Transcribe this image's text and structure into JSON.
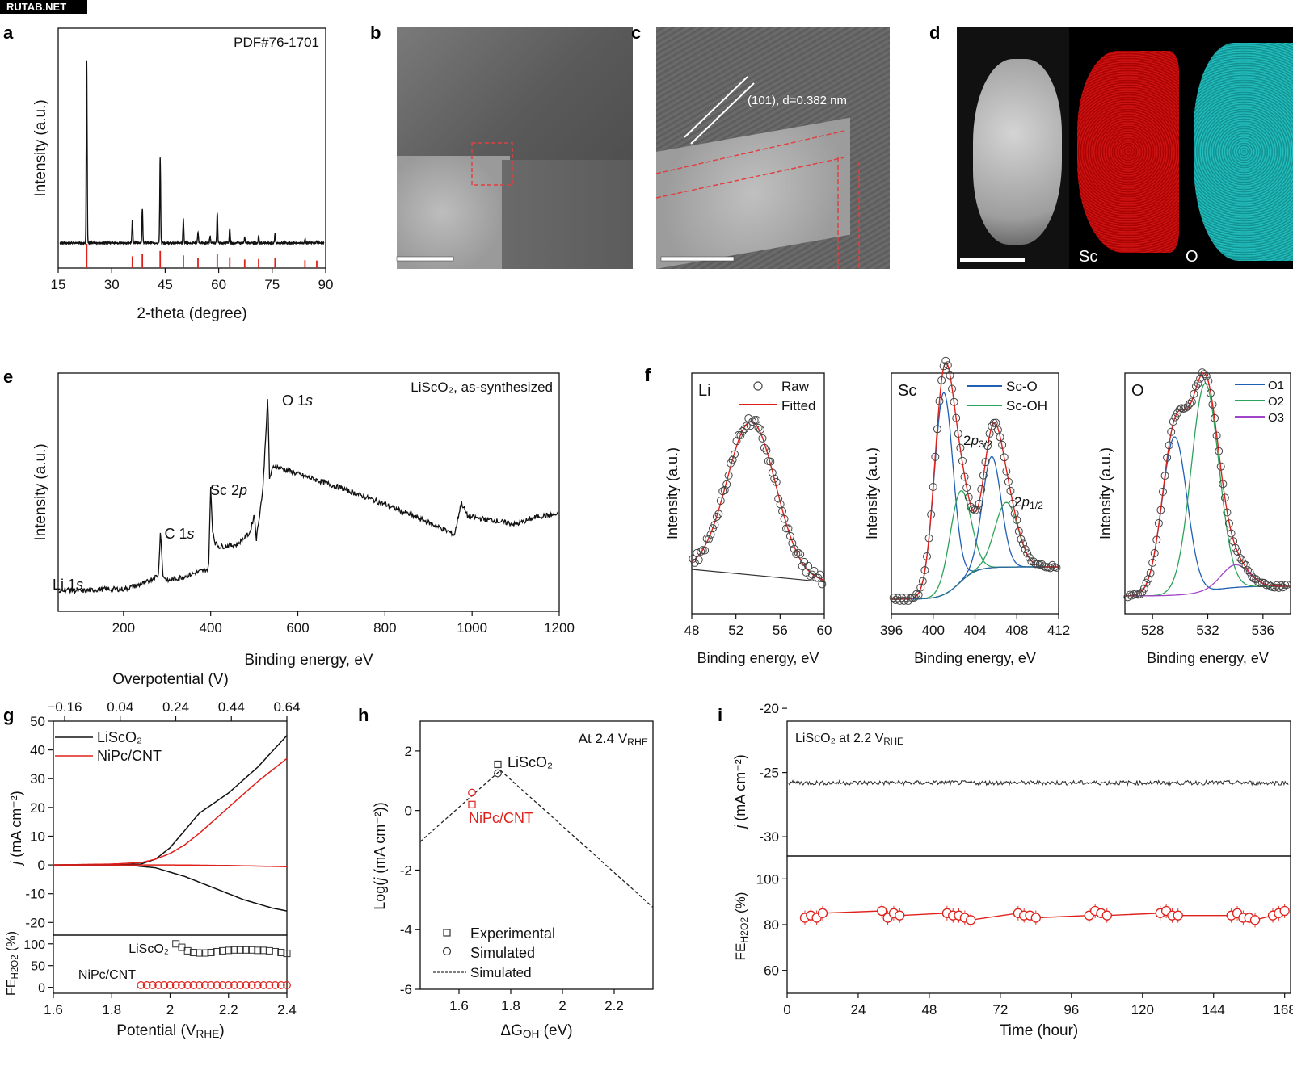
{
  "watermark": "RUTAB.NET",
  "panels": {
    "a": "a",
    "b": "b",
    "c": "c",
    "d": "d",
    "e": "e",
    "f": "f",
    "g": "g",
    "h": "h",
    "i": "i"
  },
  "micrographs": {
    "c_annotation": "(101), d=0.382 nm",
    "d_labels": [
      "Sc",
      "O"
    ]
  },
  "colors": {
    "black": "#111111",
    "red": "#e0201b",
    "blue": "#1f5fb4",
    "green": "#2ca35a",
    "purple": "#a045c8"
  },
  "chart_data": [
    {
      "id": "a",
      "type": "line",
      "title": "PDF#76-1701",
      "xlabel": "2-theta (degree)",
      "ylabel": "Intensity (a.u.)",
      "xlim": [
        15,
        90
      ],
      "xticks": [
        15,
        30,
        45,
        60,
        75,
        90
      ],
      "peaks": [
        [
          23.0,
          1.0
        ],
        [
          35.8,
          0.13
        ],
        [
          38.6,
          0.19
        ],
        [
          43.6,
          0.47
        ],
        [
          50.1,
          0.13
        ],
        [
          54.2,
          0.06
        ],
        [
          57.6,
          0.04
        ],
        [
          59.6,
          0.16
        ],
        [
          63.1,
          0.08
        ],
        [
          67.3,
          0.03
        ],
        [
          71.2,
          0.04
        ],
        [
          75.8,
          0.05
        ],
        [
          84.2,
          0.02
        ],
        [
          87.5,
          0.01
        ]
      ],
      "reference_sticks": [
        [
          23.0,
          1.0
        ],
        [
          35.8,
          0.3
        ],
        [
          38.6,
          0.45
        ],
        [
          43.6,
          0.6
        ],
        [
          50.1,
          0.35
        ],
        [
          54.2,
          0.2
        ],
        [
          59.6,
          0.45
        ],
        [
          63.1,
          0.25
        ],
        [
          67.3,
          0.12
        ],
        [
          71.2,
          0.15
        ],
        [
          75.8,
          0.18
        ],
        [
          84.2,
          0.08
        ],
        [
          87.5,
          0.06
        ]
      ]
    },
    {
      "id": "e",
      "type": "line",
      "title": "LiScO₂, as-synthesized",
      "xlabel": "Binding energy, eV",
      "ylabel": "Intensity (a.u.)",
      "xlim": [
        50,
        1200
      ],
      "xticks": [
        200,
        400,
        600,
        800,
        1000,
        1200
      ],
      "series": [
        {
          "name": "survey",
          "x": [
            50,
            60,
            100,
            150,
            200,
            250,
            280,
            285,
            290,
            300,
            350,
            395,
            400,
            404,
            410,
            420,
            460,
            490,
            500,
            505,
            520,
            531,
            535,
            545,
            600,
            700,
            800,
            900,
            960,
            975,
            990,
            1050,
            1100,
            1150,
            1200
          ],
          "y": [
            0.02,
            0.05,
            0.04,
            0.05,
            0.05,
            0.08,
            0.12,
            0.35,
            0.12,
            0.09,
            0.12,
            0.15,
            0.55,
            0.35,
            0.28,
            0.26,
            0.27,
            0.33,
            0.42,
            0.3,
            0.55,
            1.0,
            0.6,
            0.66,
            0.62,
            0.55,
            0.47,
            0.38,
            0.32,
            0.48,
            0.41,
            0.39,
            0.37,
            0.41,
            0.42
          ]
        }
      ],
      "annotations": [
        {
          "text": "Li 1",
          "italic": "s",
          "x": 55
        },
        {
          "text": "C 1",
          "italic": "s",
          "x": 285
        },
        {
          "text": "Sc 2",
          "italic": "p",
          "x": 400
        },
        {
          "text": "O 1",
          "italic": "s",
          "x": 531
        }
      ]
    },
    {
      "id": "f_li",
      "type": "scatter",
      "element": "Li",
      "xlabel": "Binding energy, eV",
      "ylabel": "Intensity (a.u.)",
      "xlim": [
        48,
        60
      ],
      "xticks": [
        48,
        52,
        56,
        60
      ],
      "legend": [
        "Raw",
        "Fitted"
      ],
      "peak": {
        "center": 53.4,
        "width": 2.2
      }
    },
    {
      "id": "f_sc",
      "type": "scatter",
      "element": "Sc",
      "xlabel": "Binding energy, eV",
      "ylabel": "Intensity (a.u.)",
      "xlim": [
        396,
        412
      ],
      "xticks": [
        396,
        400,
        404,
        408,
        412
      ],
      "legend": [
        "Sc-O",
        "Sc-OH"
      ],
      "annotations": [
        {
          "text": "2",
          "italic": "p",
          "sub": "3/2"
        },
        {
          "text": "2",
          "italic": "p",
          "sub": "1/2"
        }
      ],
      "peaks": [
        {
          "center": 401.0,
          "height": 1.0,
          "width": 0.9,
          "series": "Sc-O"
        },
        {
          "center": 402.6,
          "height": 0.45,
          "width": 1.0,
          "series": "Sc-OH"
        },
        {
          "center": 405.6,
          "height": 0.55,
          "width": 0.9,
          "series": "Sc-O"
        },
        {
          "center": 407.0,
          "height": 0.32,
          "width": 1.1,
          "series": "Sc-OH"
        }
      ]
    },
    {
      "id": "f_o",
      "type": "scatter",
      "element": "O",
      "xlabel": "Binding energy, eV",
      "ylabel": "Intensity (a.u.)",
      "xlim": [
        526,
        538
      ],
      "xticks": [
        528,
        532,
        536
      ],
      "legend": [
        "O1",
        "O2",
        "O3"
      ],
      "peaks": [
        {
          "center": 529.6,
          "height": 0.7,
          "width": 0.9,
          "series": "O1"
        },
        {
          "center": 531.8,
          "height": 0.92,
          "width": 1.0,
          "series": "O2"
        },
        {
          "center": 534.0,
          "height": 0.1,
          "width": 1.0,
          "series": "O3"
        }
      ]
    },
    {
      "id": "g",
      "type": "line",
      "xlabel_main": "Potential (V",
      "xlabel_sub": "RHE",
      "xlabel_close": ")",
      "top_axis_label": "Overpotential (V)",
      "top_xticks": [
        "−0.16",
        "0.04",
        "0.24",
        "0.44",
        "0.64"
      ],
      "ylabel": "j (mA cm⁻²)",
      "xlim": [
        1.6,
        2.4
      ],
      "ylim": [
        -23,
        50
      ],
      "xticks": [
        1.6,
        1.8,
        2.0,
        2.2,
        2.4
      ],
      "yticks": [
        -20,
        -10,
        0,
        10,
        20,
        30,
        40,
        50
      ],
      "legend": [
        "LiScO₂",
        "NiPc/CNT"
      ],
      "series": [
        {
          "name": "LiScO₂ disk",
          "x": [
            1.6,
            1.8,
            1.9,
            1.95,
            2.0,
            2.05,
            2.1,
            2.2,
            2.3,
            2.4
          ],
          "y": [
            0,
            0,
            0.3,
            2,
            6,
            12,
            18,
            25,
            34,
            45
          ]
        },
        {
          "name": "NiPc/CNT disk",
          "x": [
            1.6,
            1.8,
            1.9,
            1.95,
            2.0,
            2.05,
            2.1,
            2.2,
            2.3,
            2.4
          ],
          "y": [
            0,
            0.3,
            0.8,
            2,
            4,
            7,
            11,
            20,
            29,
            37
          ]
        },
        {
          "name": "LiScO₂ ring",
          "x": [
            1.6,
            1.85,
            1.95,
            2.05,
            2.15,
            2.25,
            2.35,
            2.4
          ],
          "y": [
            0,
            0,
            -1,
            -4,
            -8,
            -12,
            -15,
            -16
          ]
        },
        {
          "name": "NiPc/CNT ring",
          "x": [
            1.6,
            2.0,
            2.2,
            2.4
          ],
          "y": [
            0,
            0,
            -0.2,
            -0.6
          ]
        }
      ],
      "fe": {
        "ylabel_main": "FE",
        "ylabel_sub": "H2O2",
        "ylabel_close": " (%)",
        "yticks": [
          0,
          50,
          100
        ],
        "ylim": [
          -10,
          120
        ],
        "labels": [
          "LiScO₂",
          "NiPc/CNT"
        ],
        "lisco2": {
          "x": [
            2.02,
            2.04,
            2.06,
            2.08,
            2.1,
            2.12,
            2.14,
            2.16,
            2.18,
            2.2,
            2.22,
            2.24,
            2.26,
            2.28,
            2.3,
            2.32,
            2.34,
            2.36,
            2.38,
            2.4
          ],
          "y": [
            100,
            92,
            84,
            80,
            79,
            79,
            80,
            82,
            84,
            85,
            86,
            86,
            86,
            86,
            85,
            85,
            84,
            82,
            80,
            78
          ]
        },
        "nipc": {
          "x": [
            1.9,
            1.92,
            1.94,
            1.96,
            1.98,
            2.0,
            2.02,
            2.04,
            2.06,
            2.08,
            2.1,
            2.12,
            2.14,
            2.16,
            2.18,
            2.2,
            2.22,
            2.24,
            2.26,
            2.28,
            2.3,
            2.32,
            2.34,
            2.36,
            2.38,
            2.4
          ],
          "y": [
            5,
            5,
            5,
            5,
            5,
            5,
            5,
            5,
            5,
            5,
            5,
            5,
            5,
            5,
            5,
            5,
            5,
            5,
            5,
            5,
            5,
            5,
            5,
            5,
            5,
            5
          ]
        }
      }
    },
    {
      "id": "h",
      "type": "scatter",
      "title_main": "At 2.4 V",
      "title_sub": "RHE",
      "xlabel_main": "ΔG",
      "xlabel_sub": "OH",
      "xlabel_close": " (eV)",
      "ylabel": "Log(j (mA cm⁻²))",
      "xlim": [
        1.45,
        2.35
      ],
      "ylim": [
        -6,
        3
      ],
      "xticks": [
        1.6,
        1.8,
        2.0,
        2.2
      ],
      "yticks": [
        -6,
        -4,
        -2,
        0,
        2
      ],
      "volcano": {
        "x": [
          1.45,
          1.76,
          2.35
        ],
        "y": [
          -1.05,
          1.35,
          -3.25
        ]
      },
      "experimental": [
        {
          "x": 1.75,
          "y": 1.55,
          "name": "LiScO₂"
        },
        {
          "x": 1.65,
          "y": 0.2,
          "name": "NiPc/CNT"
        }
      ],
      "simulated": [
        {
          "x": 1.75,
          "y": 1.25,
          "name": "LiScO₂"
        },
        {
          "x": 1.65,
          "y": 0.6,
          "name": "NiPc/CNT"
        }
      ],
      "legend": [
        "Experimental",
        "Simulated",
        "Simulated"
      ]
    },
    {
      "id": "i",
      "type": "line",
      "title_main": "LiScO₂ at 2.2 V",
      "title_sub": "RHE",
      "xlabel": "Time (hour)",
      "ylabel": "j (mA cm⁻²)",
      "xlim": [
        0,
        170
      ],
      "xticks": [
        0,
        24,
        48,
        72,
        96,
        120,
        144,
        168
      ],
      "ylim": [
        -31.5,
        -21
      ],
      "yticks": [
        -20,
        -25,
        -30
      ],
      "current_level": -25.8,
      "fe": {
        "ylabel_main": "FE",
        "ylabel_sub": "H2O2",
        "ylabel_close": " (%)",
        "ylim": [
          50,
          110
        ],
        "yticks": [
          60,
          80,
          100
        ],
        "x": [
          6,
          8,
          10,
          12,
          32,
          34,
          36,
          38,
          54,
          56,
          58,
          60,
          62,
          78,
          80,
          82,
          84,
          102,
          104,
          106,
          108,
          126,
          128,
          130,
          132,
          150,
          152,
          154,
          156,
          158,
          164,
          166,
          168
        ],
        "y": [
          83,
          84,
          83,
          85,
          86,
          83,
          85,
          84,
          85,
          84,
          84,
          83,
          82,
          85,
          84,
          84,
          83,
          84,
          86,
          85,
          84,
          85,
          86,
          84,
          84,
          84,
          85,
          83,
          83,
          82,
          84,
          85,
          86
        ]
      }
    }
  ]
}
